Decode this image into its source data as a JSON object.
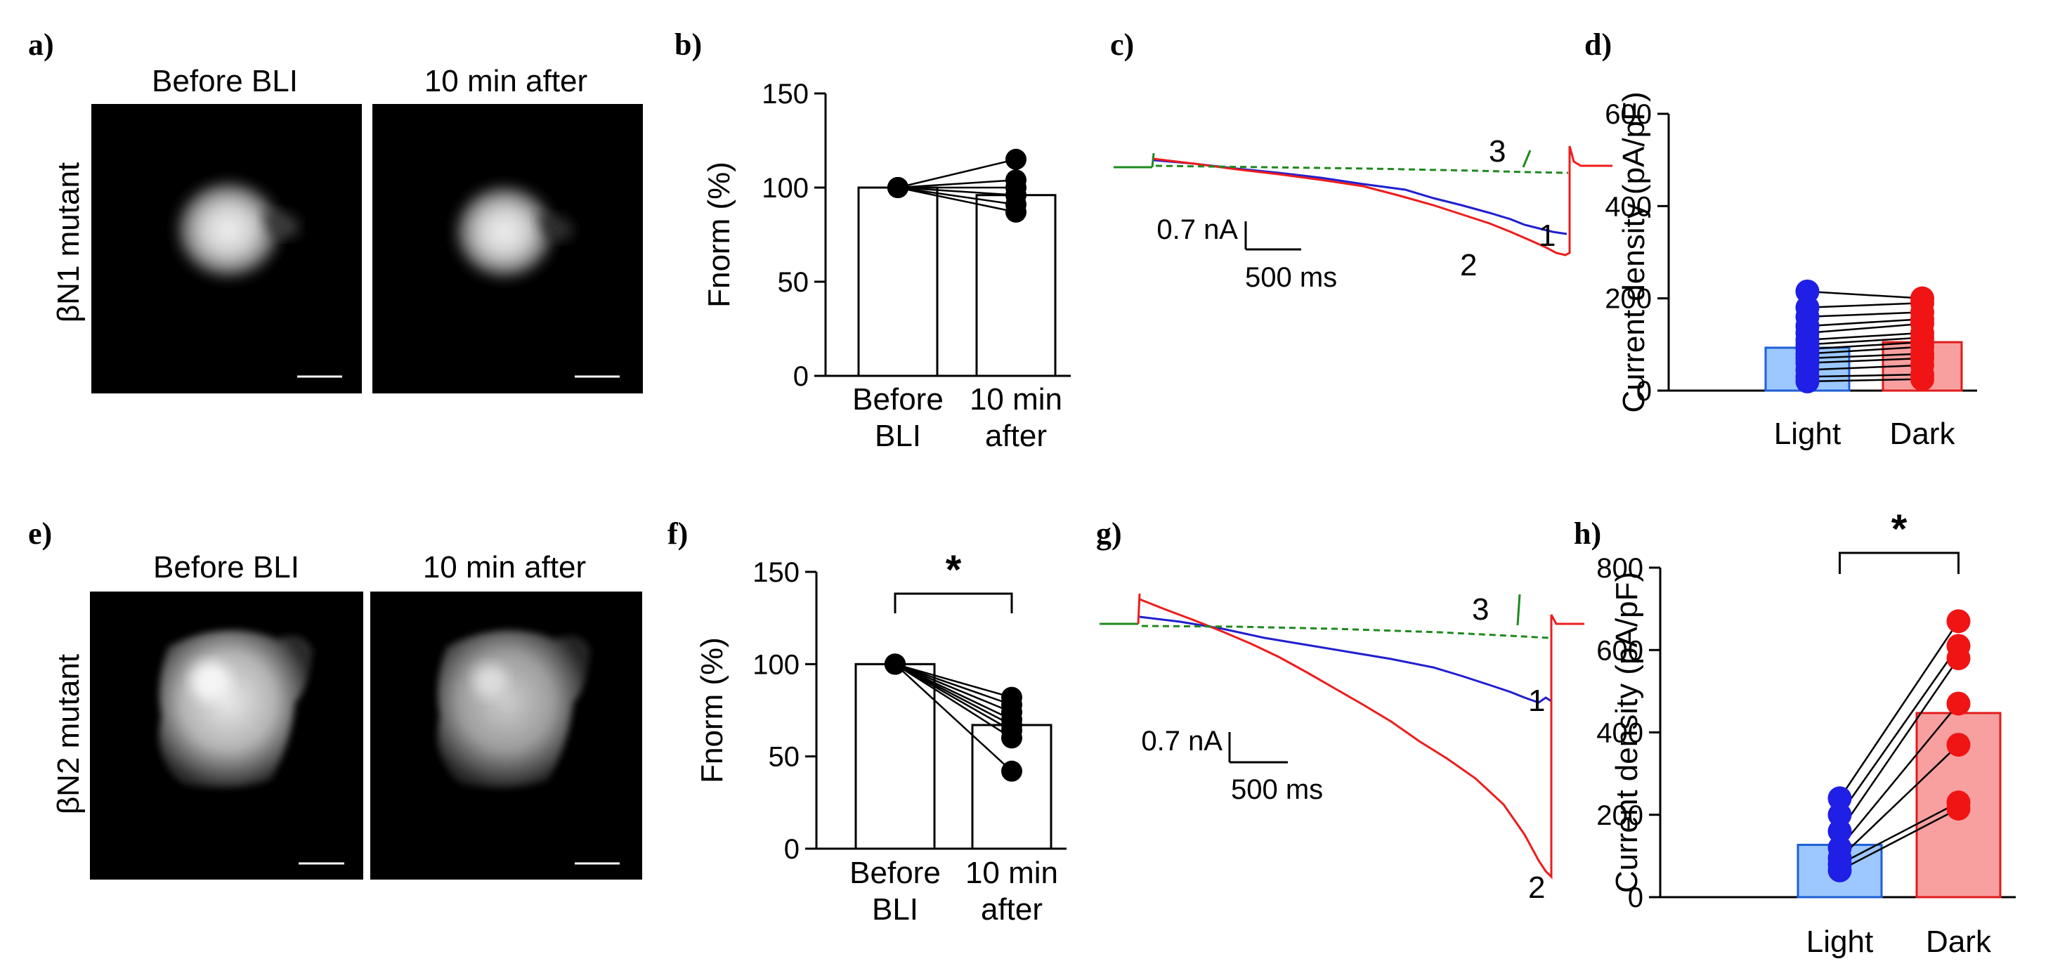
{
  "panel_letters": {
    "a": "a)",
    "b": "b)",
    "c": "c)",
    "d": "d)",
    "e": "e)",
    "f": "f)",
    "g": "g)",
    "h": "h)"
  },
  "images": {
    "before_label": "Before BLI",
    "after_label": "10 min after",
    "row1_label": "βN1 mutant",
    "row2_label": "βN2 mutant"
  },
  "traces": {
    "scale_current": "0.7 nA",
    "scale_time": "500 ms",
    "colors": {
      "1": "#1f1fd0",
      "2": "#ee1c1c",
      "3": "#1e8a1e"
    },
    "c_labels": {
      "1": "1",
      "2": "2",
      "3": "3"
    },
    "g_labels": {
      "1": "1",
      "2": "2",
      "3": "3"
    }
  },
  "colors": {
    "light_fill": "#9cc8ff",
    "light_edge": "#1f5fd6",
    "light_dot": "#1f1fe6",
    "dark_fill": "#f8a0a0",
    "dark_edge": "#e01c1c",
    "dark_dot": "#f01414"
  },
  "chart_data": [
    {
      "id": "b",
      "type": "bar",
      "title": "",
      "categories": [
        "Before BLI",
        "10 min after"
      ],
      "category_lines": [
        [
          "Before",
          "BLI"
        ],
        [
          "10 min",
          "after"
        ]
      ],
      "values": [
        100,
        96
      ],
      "ylabel": "Fnorm (%)",
      "ylim": [
        0,
        150
      ],
      "yticks": [
        0,
        50,
        100,
        150
      ],
      "paired_y1": [
        100,
        100,
        100,
        100,
        100,
        100
      ],
      "paired_y2": [
        115,
        104,
        100,
        96,
        91,
        87
      ],
      "significance": ""
    },
    {
      "id": "d",
      "type": "bar",
      "title": "",
      "categories": [
        "Light",
        "Dark"
      ],
      "values": [
        93,
        105
      ],
      "ylabel": "Current density (pA/pF)",
      "ylim": [
        0,
        600
      ],
      "yticks": [
        0,
        200,
        400,
        600
      ],
      "paired_y1": [
        215,
        180,
        160,
        140,
        125,
        110,
        100,
        90,
        80,
        70,
        60,
        45,
        30,
        20
      ],
      "paired_y2": [
        200,
        190,
        170,
        155,
        145,
        125,
        115,
        105,
        95,
        80,
        70,
        55,
        35,
        25
      ],
      "significance": ""
    },
    {
      "id": "f",
      "type": "bar",
      "title": "",
      "categories": [
        "Before BLI",
        "10 min after"
      ],
      "category_lines": [
        [
          "Before",
          "BLI"
        ],
        [
          "10 min",
          "after"
        ]
      ],
      "values": [
        100,
        67
      ],
      "ylabel": "Fnorm (%)",
      "ylim": [
        0,
        150
      ],
      "yticks": [
        0,
        50,
        100,
        150
      ],
      "paired_y1": [
        100,
        100,
        100,
        100,
        100,
        100,
        100,
        100
      ],
      "paired_y2": [
        82,
        78,
        74,
        70,
        67,
        64,
        60,
        42
      ],
      "significance": "*"
    },
    {
      "id": "h",
      "type": "bar",
      "title": "",
      "categories": [
        "Light",
        "Dark"
      ],
      "values": [
        127,
        447
      ],
      "ylabel": "Current density (pA/pF)",
      "ylim": [
        0,
        800
      ],
      "yticks": [
        0,
        200,
        400,
        600,
        800
      ],
      "paired_y1": [
        240,
        200,
        160,
        120,
        95,
        80,
        65
      ],
      "paired_y2": [
        670,
        610,
        580,
        470,
        370,
        230,
        215
      ],
      "significance": "*"
    }
  ]
}
